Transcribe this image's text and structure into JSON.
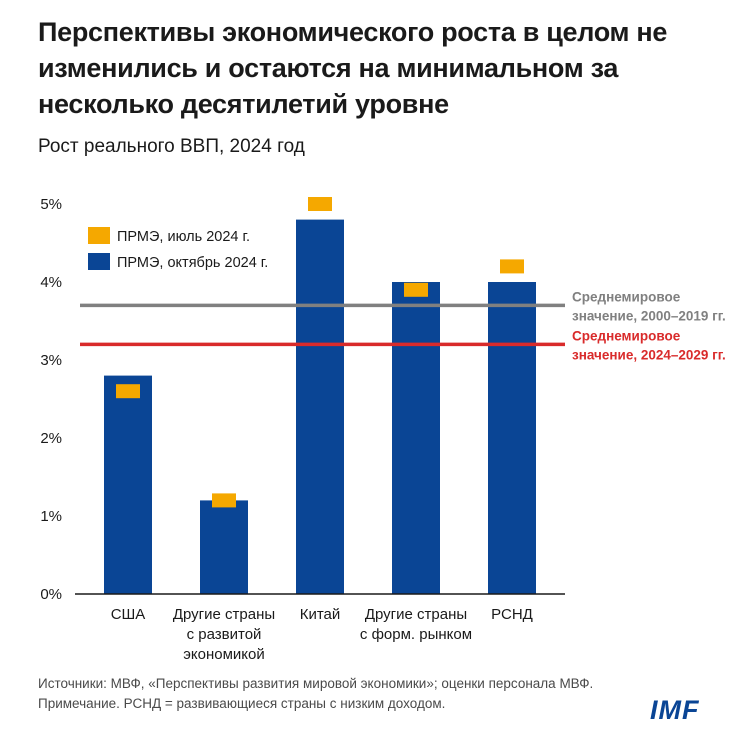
{
  "title": "Перспективы экономического роста в целом не изменились и остаются на минимальном за несколько десятилетий уровне",
  "subtitle": "Рост реального ВВП, 2024 год",
  "colors": {
    "bar": "#0a4595",
    "marker": "#f5a800",
    "world_hist": "#808080",
    "world_proj": "#d92b2b",
    "ink": "#1a1a1a"
  },
  "chart_data": {
    "type": "bar",
    "categories": [
      [
        "США"
      ],
      [
        "Другие страны",
        "с развитой",
        "экономикой"
      ],
      [
        "Китай"
      ],
      [
        "Другие страны",
        "с форм. рынком"
      ],
      [
        "РСНД"
      ]
    ],
    "series": [
      {
        "name": "ПРМЭ, октябрь 2024 г.",
        "kind": "bar",
        "values": [
          2.8,
          1.2,
          4.8,
          4.0,
          4.0
        ]
      },
      {
        "name": "ПРМЭ, июль 2024 г.",
        "kind": "marker",
        "values": [
          2.6,
          1.2,
          5.0,
          3.9,
          4.2
        ]
      }
    ],
    "reference_lines": [
      {
        "value": 3.7,
        "label": [
          "Среднемировое",
          "значение, 2000–2019 гг."
        ],
        "color_key": "world_hist"
      },
      {
        "value": 3.2,
        "label": [
          "Среднемировое",
          "значение, 2024–2029 гг."
        ],
        "color_key": "world_proj"
      }
    ],
    "yticks": [
      "0%",
      "1%",
      "2%",
      "3%",
      "4%",
      "5%"
    ],
    "ylim": [
      0,
      5
    ],
    "legend_position": "top-left",
    "grid": false
  },
  "footer": {
    "sources": "Источники: МВФ, «Перспективы развития мировой экономики»; оценки персонала МВФ.",
    "note": "Примечание. РСНД = развивающиеся страны с низким доходом."
  },
  "logo": "IMF"
}
